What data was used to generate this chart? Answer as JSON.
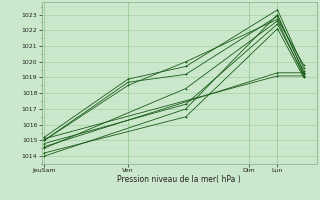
{
  "xlabel": "Pression niveau de la mer( hPa )",
  "bg_color": "#cce8cc",
  "grid_color_major": "#99cc99",
  "grid_color_minor": "#bbddbb",
  "line_color": "#1a5c1a",
  "ylim": [
    1013.5,
    1023.8
  ],
  "yticks": [
    1014,
    1015,
    1016,
    1017,
    1018,
    1019,
    1020,
    1021,
    1022,
    1023
  ],
  "xlim": [
    0.0,
    1.05
  ],
  "x_tick_positions": [
    0.01,
    0.33,
    0.79,
    0.9
  ],
  "x_tick_labels": [
    "JeuSam",
    "Ven",
    "Dim",
    "Lun"
  ],
  "series": [
    {
      "x": [
        0.01,
        0.55,
        0.9,
        1.0
      ],
      "y": [
        1014.0,
        1017.0,
        1023.0,
        1019.3
      ]
    },
    {
      "x": [
        0.01,
        0.55,
        0.9,
        1.0
      ],
      "y": [
        1014.5,
        1018.3,
        1022.6,
        1019.1
      ]
    },
    {
      "x": [
        0.01,
        0.33,
        0.55,
        0.9,
        1.0
      ],
      "y": [
        1015.0,
        1018.7,
        1019.2,
        1022.9,
        1019.4
      ]
    },
    {
      "x": [
        0.01,
        0.33,
        0.55,
        0.9,
        1.0
      ],
      "y": [
        1015.2,
        1018.9,
        1019.7,
        1023.3,
        1019.6
      ]
    },
    {
      "x": [
        0.01,
        0.33,
        0.55,
        0.9,
        1.0
      ],
      "y": [
        1015.0,
        1018.5,
        1020.0,
        1022.7,
        1019.8
      ]
    },
    {
      "x": [
        0.01,
        0.55,
        0.9,
        1.0
      ],
      "y": [
        1014.2,
        1016.5,
        1022.1,
        1019.0
      ]
    },
    {
      "x": [
        0.01,
        0.55,
        0.9,
        1.0
      ],
      "y": [
        1014.8,
        1017.3,
        1022.4,
        1019.2
      ]
    },
    {
      "x": [
        0.01,
        0.9,
        1.0
      ],
      "y": [
        1015.1,
        1019.1,
        1019.1
      ]
    },
    {
      "x": [
        0.01,
        0.9,
        1.0
      ],
      "y": [
        1014.6,
        1019.3,
        1019.3
      ]
    }
  ]
}
